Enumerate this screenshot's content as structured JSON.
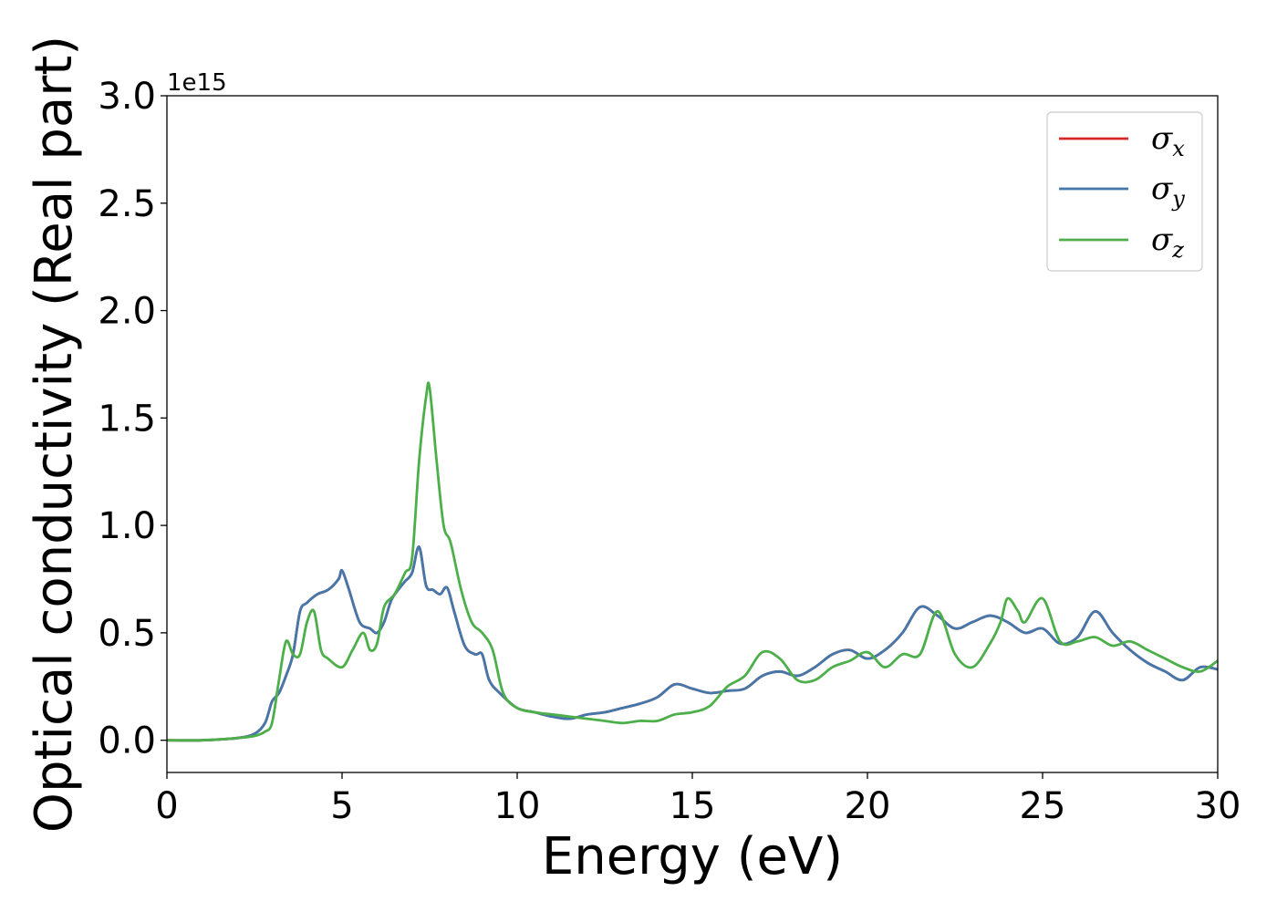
{
  "chart_data": {
    "type": "line",
    "xlabel": "Energy (eV)",
    "ylabel": "Optical conductivity (Real part)",
    "y_offset_label": "1e15",
    "xlim": [
      0,
      30
    ],
    "ylim": [
      -0.15,
      3.0
    ],
    "xticks": [
      0,
      5,
      10,
      15,
      20,
      25,
      30
    ],
    "yticks": [
      0.0,
      0.5,
      1.0,
      1.5,
      2.0,
      2.5,
      3.0
    ],
    "xtick_labels": [
      "0",
      "5",
      "10",
      "15",
      "20",
      "25",
      "30"
    ],
    "ytick_labels": [
      "0.0",
      "0.5",
      "1.0",
      "1.5",
      "2.0",
      "2.5",
      "3.0"
    ],
    "grid": false,
    "legend_position": "top-right",
    "colors": {
      "sigma_x": "#d62728",
      "sigma_y": "#4477aa",
      "sigma_z": "#4daf4a"
    },
    "series": [
      {
        "name": "σx",
        "legend_base": "σ",
        "legend_sub": "x",
        "color": "#d62728",
        "x": [
          0,
          1,
          2,
          2.5,
          2.8,
          3.0,
          3.2,
          3.4,
          3.6,
          3.8,
          4.0,
          4.3,
          4.6,
          4.9,
          5.0,
          5.2,
          5.5,
          5.8,
          6.0,
          6.2,
          6.4,
          6.6,
          6.8,
          7.0,
          7.2,
          7.4,
          7.6,
          7.8,
          8.0,
          8.2,
          8.5,
          8.8,
          9.0,
          9.2,
          9.5,
          10.0,
          10.5,
          11.0,
          11.5,
          12.0,
          12.5,
          13.0,
          13.5,
          14.0,
          14.5,
          15.0,
          15.5,
          16.0,
          16.5,
          17.0,
          17.5,
          18.0,
          18.5,
          19.0,
          19.5,
          20.0,
          20.5,
          21.0,
          21.5,
          22.0,
          22.5,
          23.0,
          23.5,
          24.0,
          24.5,
          25.0,
          25.5,
          26.0,
          26.5,
          27.0,
          27.5,
          28.0,
          28.5,
          29.0,
          29.5,
          30.0
        ],
        "y": [
          0.0,
          0.0,
          0.01,
          0.03,
          0.08,
          0.18,
          0.22,
          0.3,
          0.4,
          0.6,
          0.64,
          0.68,
          0.7,
          0.75,
          0.79,
          0.7,
          0.55,
          0.52,
          0.5,
          0.55,
          0.65,
          0.7,
          0.74,
          0.78,
          0.9,
          0.72,
          0.7,
          0.68,
          0.71,
          0.6,
          0.44,
          0.4,
          0.4,
          0.28,
          0.22,
          0.15,
          0.13,
          0.11,
          0.1,
          0.12,
          0.13,
          0.15,
          0.17,
          0.2,
          0.26,
          0.24,
          0.22,
          0.23,
          0.24,
          0.3,
          0.32,
          0.3,
          0.34,
          0.4,
          0.42,
          0.38,
          0.42,
          0.5,
          0.62,
          0.58,
          0.52,
          0.55,
          0.58,
          0.55,
          0.5,
          0.52,
          0.45,
          0.48,
          0.6,
          0.5,
          0.42,
          0.36,
          0.32,
          0.28,
          0.34,
          0.33
        ]
      },
      {
        "name": "σy",
        "legend_base": "σ",
        "legend_sub": "y",
        "color": "#4477aa",
        "x": [
          0,
          1,
          2,
          2.5,
          2.8,
          3.0,
          3.2,
          3.4,
          3.6,
          3.8,
          4.0,
          4.3,
          4.6,
          4.9,
          5.0,
          5.2,
          5.5,
          5.8,
          6.0,
          6.2,
          6.4,
          6.6,
          6.8,
          7.0,
          7.2,
          7.4,
          7.6,
          7.8,
          8.0,
          8.2,
          8.5,
          8.8,
          9.0,
          9.2,
          9.5,
          10.0,
          10.5,
          11.0,
          11.5,
          12.0,
          12.5,
          13.0,
          13.5,
          14.0,
          14.5,
          15.0,
          15.5,
          16.0,
          16.5,
          17.0,
          17.5,
          18.0,
          18.5,
          19.0,
          19.5,
          20.0,
          20.5,
          21.0,
          21.5,
          22.0,
          22.5,
          23.0,
          23.5,
          24.0,
          24.5,
          25.0,
          25.5,
          26.0,
          26.5,
          27.0,
          27.5,
          28.0,
          28.5,
          29.0,
          29.5,
          30.0
        ],
        "y": [
          0.0,
          0.0,
          0.01,
          0.03,
          0.08,
          0.18,
          0.22,
          0.3,
          0.4,
          0.6,
          0.64,
          0.68,
          0.7,
          0.75,
          0.79,
          0.7,
          0.55,
          0.52,
          0.5,
          0.55,
          0.65,
          0.7,
          0.74,
          0.78,
          0.9,
          0.72,
          0.7,
          0.68,
          0.71,
          0.6,
          0.44,
          0.4,
          0.4,
          0.28,
          0.22,
          0.15,
          0.13,
          0.11,
          0.1,
          0.12,
          0.13,
          0.15,
          0.17,
          0.2,
          0.26,
          0.24,
          0.22,
          0.23,
          0.24,
          0.3,
          0.32,
          0.3,
          0.34,
          0.4,
          0.42,
          0.38,
          0.42,
          0.5,
          0.62,
          0.58,
          0.52,
          0.55,
          0.58,
          0.55,
          0.5,
          0.52,
          0.45,
          0.48,
          0.6,
          0.5,
          0.42,
          0.36,
          0.32,
          0.28,
          0.34,
          0.33
        ]
      },
      {
        "name": "σz",
        "legend_base": "σ",
        "legend_sub": "z",
        "color": "#4daf4a",
        "x": [
          0,
          1,
          2,
          2.5,
          2.8,
          3.0,
          3.2,
          3.4,
          3.6,
          3.8,
          4.0,
          4.2,
          4.4,
          4.6,
          5.0,
          5.3,
          5.6,
          5.8,
          6.0,
          6.2,
          6.5,
          6.8,
          7.0,
          7.2,
          7.4,
          7.5,
          7.7,
          7.9,
          8.1,
          8.4,
          8.7,
          9.0,
          9.3,
          9.6,
          10.0,
          10.5,
          11.0,
          11.5,
          12.0,
          12.5,
          13.0,
          13.5,
          14.0,
          14.5,
          15.0,
          15.5,
          16.0,
          16.5,
          17.0,
          17.5,
          18.0,
          18.5,
          19.0,
          19.5,
          20.0,
          20.5,
          21.0,
          21.5,
          22.0,
          22.5,
          23.0,
          23.5,
          23.8,
          24.0,
          24.3,
          24.5,
          25.0,
          25.5,
          26.0,
          26.5,
          27.0,
          27.5,
          28.0,
          28.5,
          29.0,
          29.5,
          30.0
        ],
        "y": [
          0.0,
          0.0,
          0.01,
          0.02,
          0.04,
          0.08,
          0.28,
          0.46,
          0.4,
          0.4,
          0.55,
          0.6,
          0.42,
          0.38,
          0.34,
          0.42,
          0.5,
          0.42,
          0.45,
          0.62,
          0.68,
          0.78,
          0.85,
          1.3,
          1.6,
          1.64,
          1.3,
          1.0,
          0.92,
          0.7,
          0.55,
          0.5,
          0.42,
          0.22,
          0.15,
          0.13,
          0.12,
          0.11,
          0.1,
          0.09,
          0.08,
          0.09,
          0.09,
          0.12,
          0.13,
          0.16,
          0.25,
          0.3,
          0.41,
          0.38,
          0.28,
          0.28,
          0.34,
          0.37,
          0.41,
          0.34,
          0.4,
          0.4,
          0.6,
          0.4,
          0.34,
          0.45,
          0.55,
          0.66,
          0.6,
          0.55,
          0.66,
          0.46,
          0.46,
          0.48,
          0.44,
          0.46,
          0.42,
          0.38,
          0.34,
          0.32,
          0.37
        ]
      }
    ]
  }
}
